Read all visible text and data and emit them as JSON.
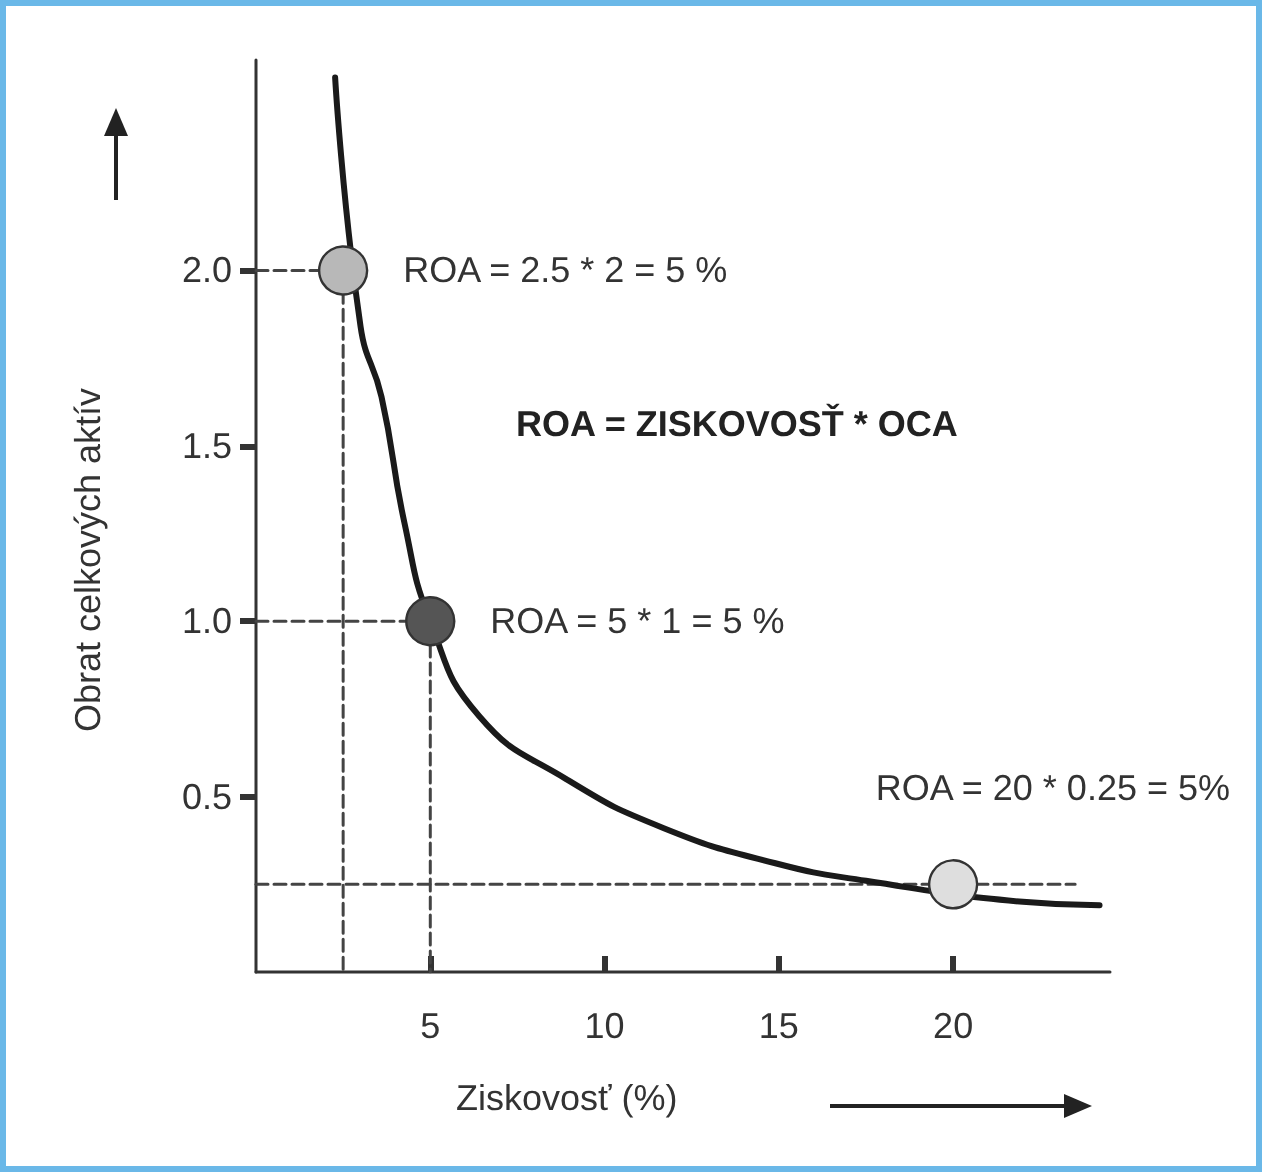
{
  "chart_data": {
    "type": "line",
    "xlabel": "Ziskovosť (%)",
    "ylabel": "Obrat celkových aktív",
    "xlim": [
      0,
      24.5
    ],
    "ylim": [
      0,
      2.6
    ],
    "xticks": [
      5,
      10,
      15,
      20
    ],
    "yticks": [
      {
        "value": 0.5,
        "label": "0.5"
      },
      {
        "value": 1,
        "label": "1.0"
      },
      {
        "value": 1.5,
        "label": "1.5"
      },
      {
        "value": 2,
        "label": "2.0"
      }
    ],
    "grid": false,
    "series": [
      {
        "color": "#1a1a1a",
        "marker": "none",
        "line_style": "solid",
        "x": [
          2.27,
          3.0,
          3.6,
          4.26,
          5.0,
          6.4,
          8.9,
          11.7,
          14.9,
          17.5,
          22,
          24.2
        ],
        "values": [
          2.55,
          1.84,
          1.64,
          1.28,
          1.0,
          0.73,
          0.55,
          0.41,
          0.31,
          0.26,
          0.2,
          0.19
        ]
      },
      {
        "color": "#444444",
        "marker": "none",
        "line_style": "dashed",
        "x": [
          0,
          2.5,
          2.5
        ],
        "values": [
          2,
          2,
          0
        ]
      },
      {
        "color": "#444444",
        "marker": "none",
        "line_style": "dashed",
        "x": [
          0,
          5,
          5
        ],
        "values": [
          1,
          1,
          0
        ]
      },
      {
        "color": "#444444",
        "marker": "none",
        "line_style": "dashed",
        "x": [
          0,
          23.5
        ],
        "values": [
          0.25,
          0.25
        ]
      },
      {
        "type": "scatter",
        "marker": "circle",
        "colors": [
          "#b8b8b8",
          "#555555",
          "#dedede"
        ],
        "x": [
          2.5,
          5,
          20
        ],
        "values": [
          2,
          1,
          0.25
        ]
      }
    ],
    "annotations": [
      {
        "text": "ROA = 2.5 * 2 = 5 %",
        "x": 2.5,
        "y": 2
      },
      "ROA = ZISKOVOSŤ * OCA",
      {
        "text": "ROA = 5 * 1 = 5 %",
        "x": 5,
        "y": 1
      },
      {
        "text": "ROA = 20 * 0.25 = 5%",
        "x": 20,
        "y": 0.25
      }
    ]
  }
}
